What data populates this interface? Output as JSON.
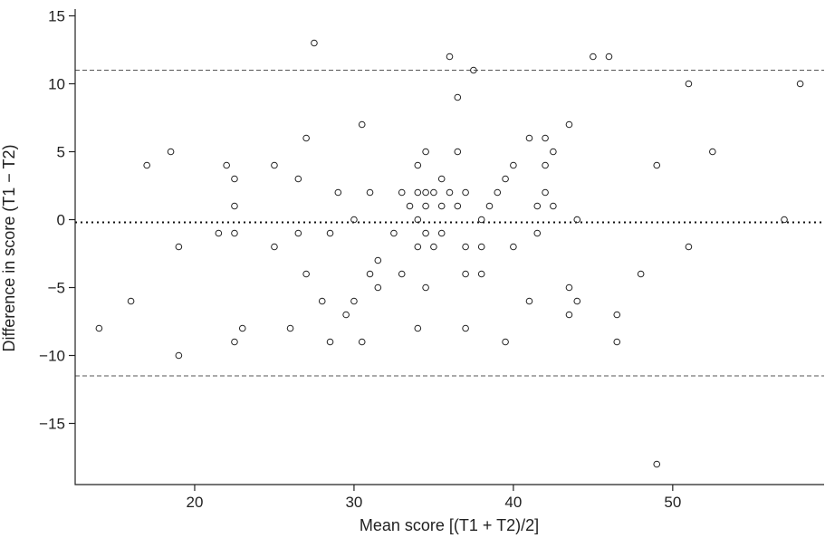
{
  "chart_data": {
    "type": "scatter",
    "title": "",
    "xlabel": "Mean score [(T1 + T2)/2]",
    "ylabel": "Difference in score (T1 − T2)",
    "xlim": [
      12.5,
      59.5
    ],
    "ylim": [
      -19.5,
      15.5
    ],
    "xticks": [
      20,
      30,
      40,
      50
    ],
    "yticks": [
      15,
      10,
      5,
      0,
      -5,
      -10,
      -15
    ],
    "xtick_labels": [
      "20",
      "30",
      "40",
      "50"
    ],
    "ytick_labels": [
      "15",
      "10",
      "5",
      "0",
      "−5",
      "−10",
      "−15"
    ],
    "grid": false,
    "reference_lines": [
      {
        "name": "mean difference",
        "y": -0.2,
        "style": "dotted"
      },
      {
        "name": "upper limit of agreement",
        "y": 11.0,
        "style": "dashed"
      },
      {
        "name": "lower limit of agreement",
        "y": -11.5,
        "style": "dashed"
      }
    ],
    "series": [
      {
        "marker": "open-circle",
        "points": [
          [
            14,
            -8
          ],
          [
            16,
            -6
          ],
          [
            17,
            4
          ],
          [
            18.5,
            5
          ],
          [
            19,
            -2
          ],
          [
            19,
            -10
          ],
          [
            21.5,
            -1
          ],
          [
            22,
            4
          ],
          [
            22.5,
            3
          ],
          [
            22.5,
            1
          ],
          [
            22.5,
            -1
          ],
          [
            22.5,
            -9
          ],
          [
            23,
            -8
          ],
          [
            25,
            4
          ],
          [
            25,
            -2
          ],
          [
            26,
            -8
          ],
          [
            26.5,
            3
          ],
          [
            26.5,
            -1
          ],
          [
            27,
            6
          ],
          [
            27,
            -4
          ],
          [
            27.5,
            13
          ],
          [
            28,
            -6
          ],
          [
            28.5,
            -1
          ],
          [
            28.5,
            -9
          ],
          [
            29,
            2
          ],
          [
            29.5,
            -7
          ],
          [
            30,
            0
          ],
          [
            30,
            -6
          ],
          [
            30.5,
            7
          ],
          [
            30.5,
            -9
          ],
          [
            31,
            2
          ],
          [
            31,
            -4
          ],
          [
            31.5,
            -3
          ],
          [
            31.5,
            -5
          ],
          [
            32.5,
            -1
          ],
          [
            33,
            2
          ],
          [
            33,
            -4
          ],
          [
            33.5,
            1
          ],
          [
            34,
            4
          ],
          [
            34,
            2
          ],
          [
            34,
            0
          ],
          [
            34,
            -2
          ],
          [
            34,
            -8
          ],
          [
            34.5,
            5
          ],
          [
            34.5,
            2
          ],
          [
            34.5,
            1
          ],
          [
            34.5,
            -1
          ],
          [
            34.5,
            -5
          ],
          [
            35,
            2
          ],
          [
            35,
            -2
          ],
          [
            35.5,
            3
          ],
          [
            35.5,
            1
          ],
          [
            35.5,
            -1
          ],
          [
            36,
            12
          ],
          [
            36,
            2
          ],
          [
            36.5,
            9
          ],
          [
            36.5,
            5
          ],
          [
            36.5,
            1
          ],
          [
            37,
            2
          ],
          [
            37,
            -2
          ],
          [
            37,
            -4
          ],
          [
            37,
            -8
          ],
          [
            37.5,
            11
          ],
          [
            38,
            0
          ],
          [
            38,
            -2
          ],
          [
            38,
            -4
          ],
          [
            38.5,
            1
          ],
          [
            39,
            2
          ],
          [
            39.5,
            3
          ],
          [
            39.5,
            -9
          ],
          [
            40,
            4
          ],
          [
            40,
            -2
          ],
          [
            41,
            6
          ],
          [
            41,
            -6
          ],
          [
            41.5,
            1
          ],
          [
            41.5,
            -1
          ],
          [
            42,
            6
          ],
          [
            42,
            4
          ],
          [
            42,
            2
          ],
          [
            42.5,
            5
          ],
          [
            42.5,
            1
          ],
          [
            43.5,
            7
          ],
          [
            43.5,
            -5
          ],
          [
            43.5,
            -7
          ],
          [
            44,
            0
          ],
          [
            44,
            -6
          ],
          [
            45,
            12
          ],
          [
            46,
            12
          ],
          [
            46.5,
            -7
          ],
          [
            46.5,
            -9
          ],
          [
            48,
            -4
          ],
          [
            49,
            4
          ],
          [
            49,
            -18
          ],
          [
            51,
            10
          ],
          [
            51,
            -2
          ],
          [
            52.5,
            5
          ],
          [
            57,
            0
          ],
          [
            58,
            10
          ]
        ]
      }
    ]
  }
}
